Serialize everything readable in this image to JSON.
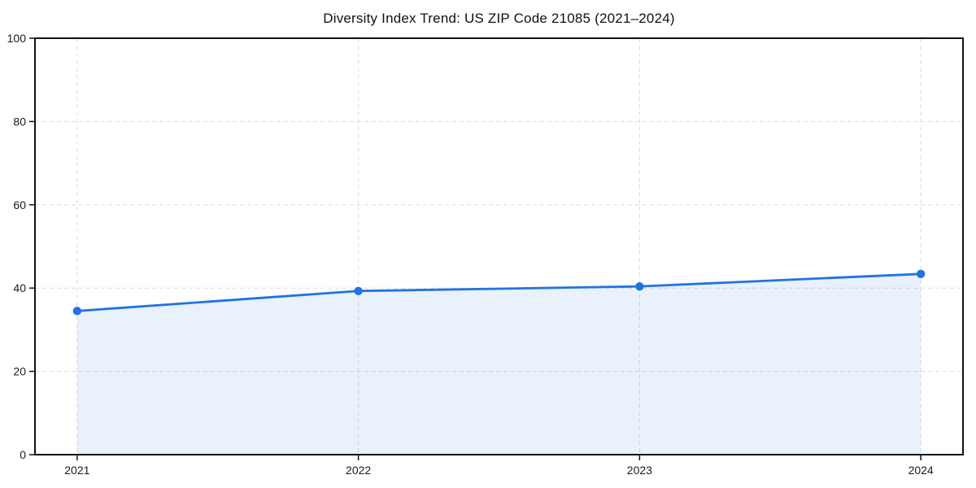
{
  "chart_data": {
    "type": "area",
    "title": "Diversity Index Trend: US ZIP Code 21085 (2021–2024)",
    "categories": [
      "2021",
      "2022",
      "2023",
      "2024"
    ],
    "series": [
      {
        "name": "Diversity Index",
        "values": [
          34.5,
          39.3,
          40.4,
          43.4
        ]
      }
    ],
    "xlabel": "",
    "ylabel": "",
    "ylim": [
      0,
      100
    ],
    "yticks": [
      0,
      20,
      40,
      60,
      80,
      100
    ],
    "grid": true,
    "grid_style": "dashed",
    "legend": "none",
    "colors": {
      "line": "#2272e2",
      "marker": "#2272e2",
      "fill": "rgba(34,114,226,0.10)",
      "grid": "#dcdcdc",
      "frame": "#111111",
      "text": "#1a1a1a",
      "background": "#ffffff"
    }
  }
}
